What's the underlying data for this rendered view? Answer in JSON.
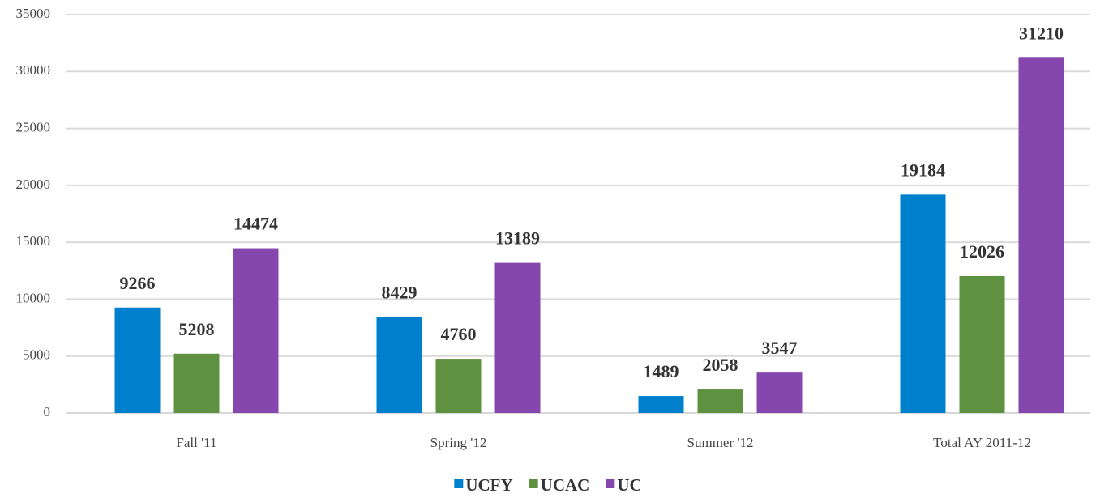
{
  "chart_data": {
    "type": "bar",
    "categories": [
      "Fall '11",
      "Spring '12",
      "Summer '12",
      "Total AY 2011-12"
    ],
    "series": [
      {
        "name": "UCFY",
        "color": "#0080cc",
        "values": [
          9266,
          8429,
          1489,
          19184
        ]
      },
      {
        "name": "UCAC",
        "color": "#5e9140",
        "values": [
          5208,
          4760,
          2058,
          12026
        ]
      },
      {
        "name": "UC",
        "color": "#8547ae",
        "values": [
          14474,
          13189,
          3547,
          31210
        ]
      }
    ],
    "ylim": [
      0,
      35000
    ],
    "yticks": [
      0,
      5000,
      10000,
      15000,
      20000,
      25000,
      30000,
      35000
    ],
    "grid": true,
    "legend": "bottom"
  }
}
